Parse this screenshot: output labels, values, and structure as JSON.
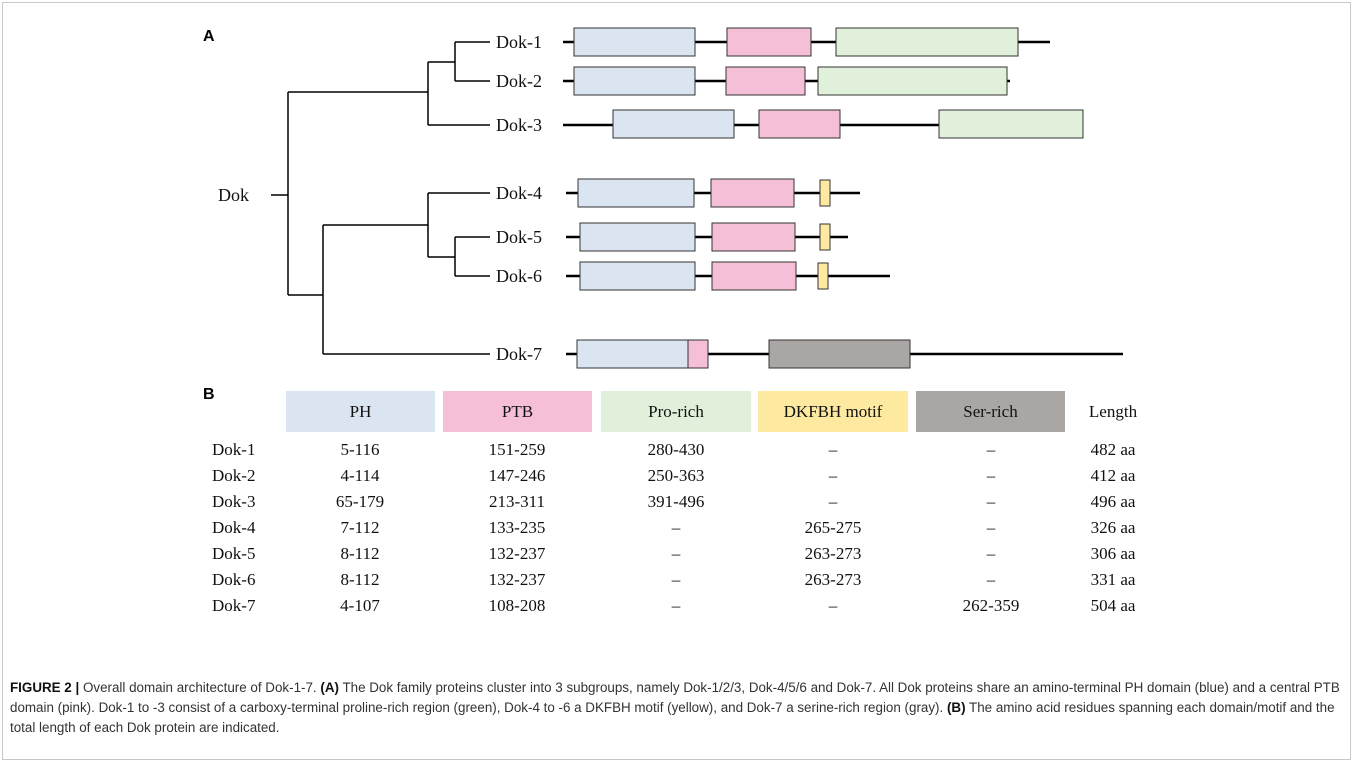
{
  "panel_a": {
    "letter": "A",
    "root_label": "Dok",
    "proteins": [
      "Dok-1",
      "Dok-2",
      "Dok-3",
      "Dok-4",
      "Dok-5",
      "Dok-6",
      "Dok-7"
    ]
  },
  "panel_b": {
    "letter": "B",
    "headers": [
      "PH",
      "PTB",
      "Pro-rich",
      "DKFBH motif",
      "Ser-rich",
      "Length"
    ],
    "rows": [
      {
        "name": "Dok-1",
        "cells": [
          "5-116",
          "151-259",
          "280-430",
          "–",
          "–",
          "482 aa"
        ]
      },
      {
        "name": "Dok-2",
        "cells": [
          "4-114",
          "147-246",
          "250-363",
          "–",
          "–",
          "412 aa"
        ]
      },
      {
        "name": "Dok-3",
        "cells": [
          "65-179",
          "213-311",
          "391-496",
          "–",
          "–",
          "496 aa"
        ]
      },
      {
        "name": "Dok-4",
        "cells": [
          "7-112",
          "133-235",
          "–",
          "265-275",
          "–",
          "326 aa"
        ]
      },
      {
        "name": "Dok-5",
        "cells": [
          "8-112",
          "132-237",
          "–",
          "263-273",
          "–",
          "306 aa"
        ]
      },
      {
        "name": "Dok-6",
        "cells": [
          "8-112",
          "132-237",
          "–",
          "263-273",
          "–",
          "331 aa"
        ]
      },
      {
        "name": "Dok-7",
        "cells": [
          "4-107",
          "108-208",
          "–",
          "–",
          "262-359",
          "504 aa"
        ]
      }
    ]
  },
  "colors": {
    "PH": "#dbe5f1",
    "PTB": "#f5c0d7",
    "Pro-rich": "#e1f0da",
    "DKFBH": "#fde9a0",
    "Ser-rich": "#a9a6a4"
  },
  "caption": {
    "label": "FIGURE 2 |",
    "intro": " Overall domain architecture of Dok-1-7. ",
    "a_ref": "(A)",
    "a_text": " The Dok family proteins cluster into 3 subgroups, namely Dok-1/2/3, Dok-4/5/6 and Dok-7. All Dok proteins share an amino-terminal PH domain (blue) and a central PTB domain (pink). Dok-1 to -3 consist of a carboxy-terminal proline-rich region (green), Dok-4 to -6 a DKFBH motif (yellow), and Dok-7 a serine-rich region (gray). ",
    "b_ref": "(B)",
    "b_text": " The amino acid residues spanning each domain/motif and the total length of each Dok protein are indicated."
  }
}
